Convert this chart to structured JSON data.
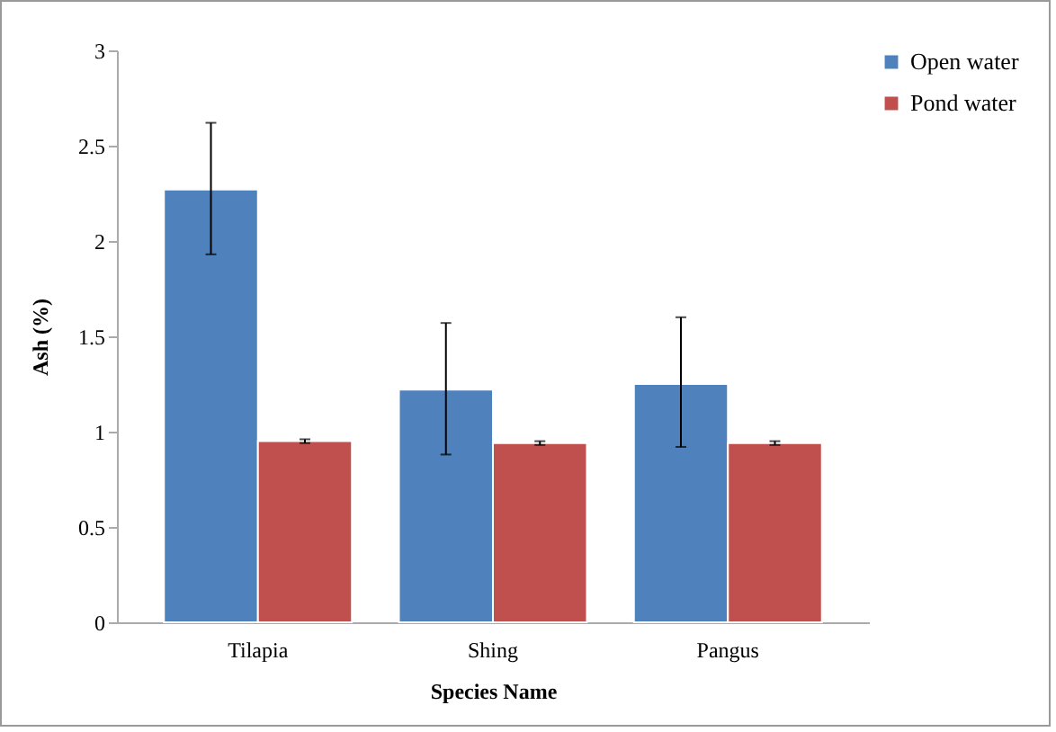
{
  "chart_data": {
    "type": "bar",
    "xlabel": "Species Name",
    "ylabel": "Ash (%)",
    "categories": [
      "Tilapia",
      "Shing",
      "Pangus"
    ],
    "series": [
      {
        "name": "Open water",
        "color": "#4f81bd",
        "values": [
          2.27,
          1.22,
          1.25
        ],
        "errors": [
          [
            1.93,
            2.62
          ],
          [
            0.88,
            1.57
          ],
          [
            0.92,
            1.6
          ]
        ]
      },
      {
        "name": "Pond water",
        "color": "#c0504d",
        "values": [
          0.95,
          0.94,
          0.94
        ],
        "errors": [
          0.01,
          0.01,
          0.01
        ]
      }
    ],
    "ylim": [
      0,
      3
    ],
    "yticks": [
      0,
      0.5,
      1,
      1.5,
      2,
      2.5,
      3
    ],
    "grid": false,
    "legend": "right"
  }
}
